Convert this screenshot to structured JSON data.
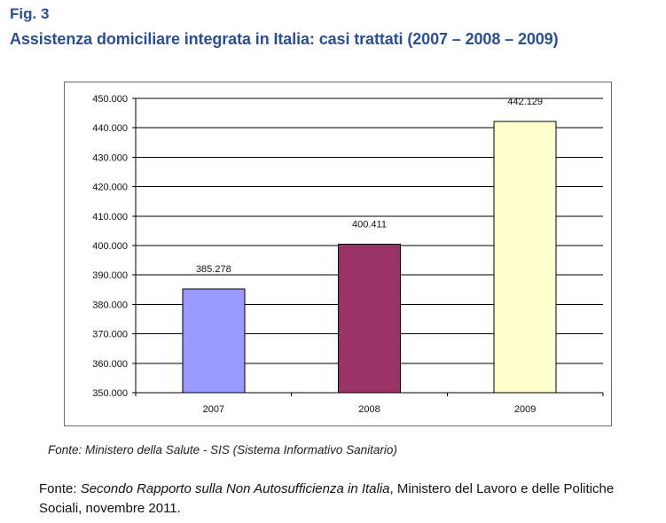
{
  "figure": {
    "label": "Fig. 3",
    "title": "Assistenza domiciliare integrata in Italia: casi trattati (2007 – 2008 – 2009)"
  },
  "chart_data": {
    "type": "bar",
    "categories": [
      "2007",
      "2008",
      "2009"
    ],
    "values": [
      385278,
      400411,
      442129
    ],
    "value_labels": [
      "385.278",
      "400.411",
      "442.129"
    ],
    "bar_colors": [
      "#9999ff",
      "#993366",
      "#ffffcc"
    ],
    "ylim": [
      350000,
      450000
    ],
    "yticks": [
      350000,
      360000,
      370000,
      380000,
      390000,
      400000,
      410000,
      420000,
      430000,
      440000,
      450000
    ],
    "ytick_labels": [
      "350.000",
      "360.000",
      "370.000",
      "380.000",
      "390.000",
      "400.000",
      "410.000",
      "420.000",
      "430.000",
      "440.000",
      "450.000"
    ],
    "grid": true,
    "title": "",
    "xlabel": "",
    "ylabel": ""
  },
  "sources": {
    "inner": "Fonte: Ministero della Salute - SIS (Sistema Informativo Sanitario)",
    "outer_prefix": "Fonte: ",
    "outer_title": "Secondo Rapporto sulla Non Autosufficienza in Italia",
    "outer_suffix": ", Ministero del Lavoro e delle Politiche Sociali, novembre 2011."
  }
}
